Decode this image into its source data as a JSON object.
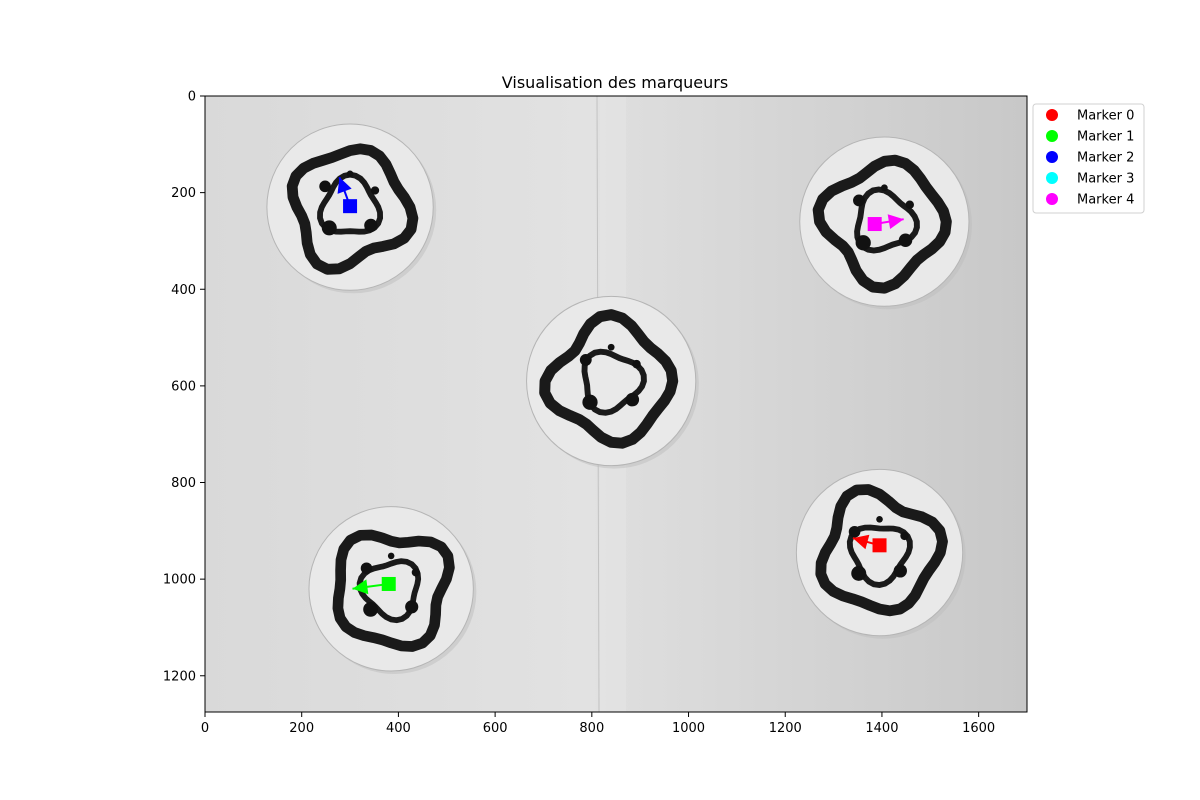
{
  "chart_data": {
    "type": "scatter",
    "title": "Visualisation des marqueurs",
    "xlabel": "",
    "ylabel": "",
    "xlim": [
      0,
      1700
    ],
    "ylim": [
      1275,
      0
    ],
    "grid": false,
    "legend_position": "outside-top-right",
    "x_ticks": [
      0,
      200,
      400,
      600,
      800,
      1000,
      1200,
      1400,
      1600
    ],
    "y_ticks": [
      0,
      200,
      400,
      600,
      800,
      1000,
      1200
    ],
    "background": {
      "description": "grayscale photograph of five circular tags",
      "tags": [
        {
          "cx": 300,
          "cy": 230,
          "r": 172
        },
        {
          "cx": 1405,
          "cy": 260,
          "r": 175
        },
        {
          "cx": 840,
          "cy": 590,
          "r": 175
        },
        {
          "cx": 1395,
          "cy": 945,
          "r": 172
        },
        {
          "cx": 385,
          "cy": 1020,
          "r": 170
        }
      ]
    },
    "series": [
      {
        "name": "Marker 0",
        "color": "#ff0000",
        "position": [
          1395,
          930
        ],
        "arrow_to": [
          1340,
          915
        ]
      },
      {
        "name": "Marker 1",
        "color": "#00ff00",
        "position": [
          380,
          1010
        ],
        "arrow_to": [
          305,
          1020
        ]
      },
      {
        "name": "Marker 2",
        "color": "#0000ff",
        "position": [
          300,
          228
        ],
        "arrow_to": [
          278,
          168
        ]
      },
      {
        "name": "Marker 3",
        "color": "#00ffff",
        "position": null,
        "arrow_to": null
      },
      {
        "name": "Marker 4",
        "color": "#ff00ff",
        "position": [
          1385,
          265
        ],
        "arrow_to": [
          1445,
          255
        ]
      }
    ]
  }
}
